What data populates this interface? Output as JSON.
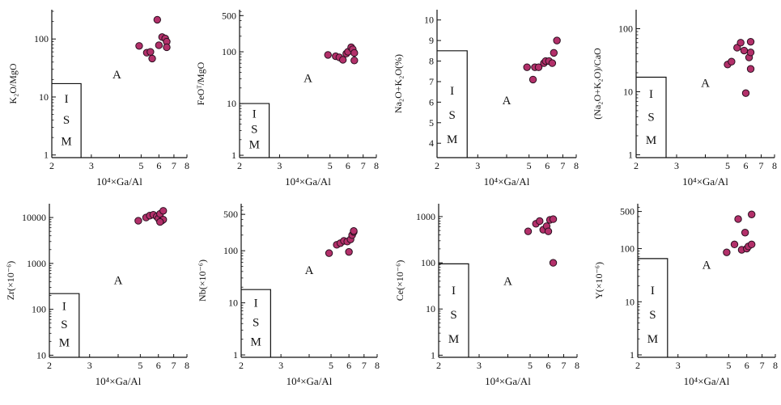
{
  "colors": {
    "point_fill": "#b3306a",
    "point_stroke": "#2a1020",
    "axis": "#111111"
  },
  "chart_data": [
    {
      "type": "scatter",
      "scale": "log-log",
      "xlabel": "10⁴×Ga/Al",
      "ylabel": "K₂O/MgO",
      "xticks": [
        2,
        3,
        4,
        5,
        6,
        7,
        8
      ],
      "xtick_labels": [
        "2",
        "3",
        "",
        "5",
        "6",
        "7",
        "8"
      ],
      "xlim": [
        2,
        8
      ],
      "ylim": [
        0.9,
        320
      ],
      "yticks": [
        1,
        10,
        100
      ],
      "ytick_labels": [
        "1",
        "10",
        "100"
      ],
      "points": [
        [
          4.9,
          76
        ],
        [
          5.3,
          58
        ],
        [
          5.5,
          60
        ],
        [
          5.6,
          46
        ],
        [
          5.9,
          215
        ],
        [
          6.0,
          78
        ],
        [
          6.2,
          108
        ],
        [
          6.4,
          102
        ],
        [
          6.5,
          90
        ],
        [
          6.5,
          72
        ]
      ],
      "fields": [
        {
          "label": "I\nS\nM",
          "x": [
            2,
            2.7
          ],
          "y": [
            0.9,
            17
          ]
        }
      ],
      "annotations": [
        {
          "text": "A",
          "x": 3.9,
          "y": 21
        }
      ]
    },
    {
      "type": "scatter",
      "scale": "log-log",
      "xlabel": "10⁴×Ga/Al",
      "ylabel": "FeOᵀ/MgO",
      "xticks": [
        2,
        3,
        4,
        5,
        6,
        7,
        8
      ],
      "xtick_labels": [
        "2",
        "3",
        "",
        "5",
        "6",
        "7",
        "8"
      ],
      "xlim": [
        2,
        8
      ],
      "ylim": [
        0.9,
        650
      ],
      "yticks": [
        1,
        10,
        100,
        500
      ],
      "ytick_labels": [
        "1",
        "10",
        "100",
        "500"
      ],
      "points": [
        [
          4.9,
          87
        ],
        [
          5.3,
          82
        ],
        [
          5.5,
          78
        ],
        [
          5.7,
          70
        ],
        [
          5.9,
          92
        ],
        [
          6.0,
          100
        ],
        [
          6.2,
          122
        ],
        [
          6.3,
          112
        ],
        [
          6.4,
          95
        ],
        [
          6.4,
          68
        ]
      ],
      "fields": [
        {
          "label": "I\nS\nM",
          "x": [
            2,
            2.7
          ],
          "y": [
            0.9,
            10
          ]
        }
      ],
      "annotations": [
        {
          "text": "A",
          "x": 4.0,
          "y": 26
        }
      ]
    },
    {
      "type": "scatter",
      "scale": "linear-y",
      "xlabel": "10⁴×Ga/Al",
      "ylabel": "Na₂O+K₂O(%)",
      "xticks": [
        2,
        3,
        4,
        5,
        6,
        7,
        8
      ],
      "xtick_labels": [
        "2",
        "3",
        "",
        "5",
        "6",
        "7",
        "8"
      ],
      "xlim": [
        2,
        8
      ],
      "ylim": [
        3.3,
        10.5
      ],
      "yticks": [
        4,
        5,
        6,
        7,
        8,
        9,
        10
      ],
      "ytick_labels": [
        "4",
        "5",
        "6",
        "7",
        "8",
        "9",
        "10"
      ],
      "points": [
        [
          4.9,
          7.7
        ],
        [
          5.2,
          7.1
        ],
        [
          5.3,
          7.7
        ],
        [
          5.5,
          7.7
        ],
        [
          5.8,
          7.9
        ],
        [
          5.9,
          8.0
        ],
        [
          6.1,
          8.0
        ],
        [
          6.3,
          7.9
        ],
        [
          6.4,
          8.4
        ],
        [
          6.6,
          9.0
        ]
      ],
      "fields": [
        {
          "label": "I\nS\nM",
          "x": [
            2,
            2.7
          ],
          "y": [
            3.3,
            8.5
          ]
        }
      ],
      "annotations": [
        {
          "text": "A",
          "x": 4.0,
          "y": 5.9
        }
      ]
    },
    {
      "type": "scatter",
      "scale": "log-log",
      "xlabel": "10⁴×Ga/Al",
      "ylabel": "(Na₂O+K₂O)/CaO",
      "xticks": [
        2,
        3,
        4,
        5,
        6,
        7,
        8
      ],
      "xtick_labels": [
        "2",
        "3",
        "",
        "5",
        "6",
        "7",
        "8"
      ],
      "xlim": [
        2,
        8
      ],
      "ylim": [
        0.9,
        200
      ],
      "yticks": [
        1,
        10,
        100
      ],
      "ytick_labels": [
        "1",
        "10",
        "100"
      ],
      "points": [
        [
          5.0,
          27
        ],
        [
          5.2,
          30
        ],
        [
          5.5,
          50
        ],
        [
          5.7,
          60
        ],
        [
          5.9,
          45
        ],
        [
          6.0,
          9.5
        ],
        [
          6.2,
          35
        ],
        [
          6.3,
          62
        ],
        [
          6.3,
          23
        ],
        [
          6.3,
          42
        ]
      ],
      "fields": [
        {
          "label": "I\nS\nM",
          "x": [
            2,
            2.7
          ],
          "y": [
            0.9,
            17
          ]
        }
      ],
      "annotations": [
        {
          "text": "A",
          "x": 4.0,
          "y": 12
        }
      ]
    },
    {
      "type": "scatter",
      "scale": "log-log",
      "xlabel": "10⁴×Ga/Al",
      "ylabel": "Zr(×10⁻⁶)",
      "xticks": [
        2,
        3,
        4,
        5,
        6,
        7,
        8
      ],
      "xtick_labels": [
        "2",
        "3",
        "",
        "5",
        "6",
        "7",
        "8"
      ],
      "xlim": [
        2,
        8
      ],
      "ylim": [
        9,
        20000
      ],
      "yticks": [
        10,
        100,
        1000,
        10000
      ],
      "ytick_labels": [
        "10",
        "100",
        "1000",
        "10000"
      ],
      "points": [
        [
          4.9,
          8500
        ],
        [
          5.3,
          10000
        ],
        [
          5.5,
          11000
        ],
        [
          5.7,
          11500
        ],
        [
          5.9,
          10500
        ],
        [
          6.0,
          9500
        ],
        [
          6.1,
          12000
        ],
        [
          6.2,
          8500
        ],
        [
          6.3,
          14000
        ],
        [
          6.3,
          9000
        ],
        [
          6.1,
          8000
        ]
      ],
      "fields": [
        {
          "label": "I\nS\nM",
          "x": [
            2,
            2.7
          ],
          "y": [
            9,
            220
          ]
        }
      ],
      "annotations": [
        {
          "text": "A",
          "x": 4.0,
          "y": 350
        }
      ]
    },
    {
      "type": "scatter",
      "scale": "log-log",
      "xlabel": "10⁴×Ga/Al",
      "ylabel": "Nb(×10⁻⁶)",
      "xticks": [
        2,
        3,
        4,
        5,
        6,
        7,
        8
      ],
      "xtick_labels": [
        "2",
        "3",
        "",
        "5",
        "6",
        "7",
        "8"
      ],
      "xlim": [
        2,
        8
      ],
      "ylim": [
        0.9,
        800
      ],
      "yticks": [
        1,
        10,
        100,
        500
      ],
      "ytick_labels": [
        "1",
        "10",
        "100",
        "500"
      ],
      "points": [
        [
          4.9,
          90
        ],
        [
          5.3,
          130
        ],
        [
          5.5,
          140
        ],
        [
          5.7,
          155
        ],
        [
          5.9,
          150
        ],
        [
          6.0,
          95
        ],
        [
          6.1,
          165
        ],
        [
          6.2,
          200
        ],
        [
          6.3,
          230
        ],
        [
          6.3,
          240
        ]
      ],
      "fields": [
        {
          "label": "I\nS\nM",
          "x": [
            2,
            2.7
          ],
          "y": [
            0.9,
            18
          ]
        }
      ],
      "annotations": [
        {
          "text": "A",
          "x": 4.0,
          "y": 36
        }
      ]
    },
    {
      "type": "scatter",
      "scale": "log-log",
      "xlabel": "10⁴×Ga/Al",
      "ylabel": "Ce(×10⁻⁶)",
      "xticks": [
        2,
        3,
        4,
        5,
        6,
        7,
        8
      ],
      "xtick_labels": [
        "2",
        "3",
        "",
        "5",
        "6",
        "7",
        "8"
      ],
      "xlim": [
        2,
        8
      ],
      "ylim": [
        0.9,
        1900
      ],
      "yticks": [
        1,
        10,
        100,
        1000
      ],
      "ytick_labels": [
        "1",
        "10",
        "100",
        "1000"
      ],
      "points": [
        [
          4.9,
          480
        ],
        [
          5.3,
          700
        ],
        [
          5.5,
          800
        ],
        [
          5.7,
          520
        ],
        [
          5.9,
          620
        ],
        [
          6.0,
          480
        ],
        [
          6.1,
          850
        ],
        [
          6.3,
          880
        ],
        [
          6.3,
          100
        ]
      ],
      "fields": [
        {
          "label": "I\nS\nM",
          "x": [
            2,
            2.7
          ],
          "y": [
            0.9,
            95
          ]
        }
      ],
      "annotations": [
        {
          "text": "A",
          "x": 4.0,
          "y": 33
        }
      ]
    },
    {
      "type": "scatter",
      "scale": "log-log",
      "xlabel": "10⁴×Ga/Al",
      "ylabel": "Y(×10⁻⁶)",
      "xticks": [
        2,
        3,
        4,
        5,
        6,
        7,
        8
      ],
      "xtick_labels": [
        "2",
        "3",
        "",
        "5",
        "6",
        "7",
        "8"
      ],
      "xlim": [
        2,
        8
      ],
      "ylim": [
        0.9,
        700
      ],
      "yticks": [
        1,
        10,
        100,
        500
      ],
      "ytick_labels": [
        "1",
        "10",
        "100",
        "500"
      ],
      "points": [
        [
          4.9,
          85
        ],
        [
          5.3,
          120
        ],
        [
          5.5,
          360
        ],
        [
          5.7,
          95
        ],
        [
          5.9,
          200
        ],
        [
          6.0,
          100
        ],
        [
          6.1,
          110
        ],
        [
          6.3,
          120
        ],
        [
          6.3,
          440
        ]
      ],
      "fields": [
        {
          "label": "I\nS\nM",
          "x": [
            2,
            2.7
          ],
          "y": [
            0.9,
            65
          ]
        }
      ],
      "annotations": [
        {
          "text": "A",
          "x": 4.0,
          "y": 42
        }
      ]
    }
  ]
}
